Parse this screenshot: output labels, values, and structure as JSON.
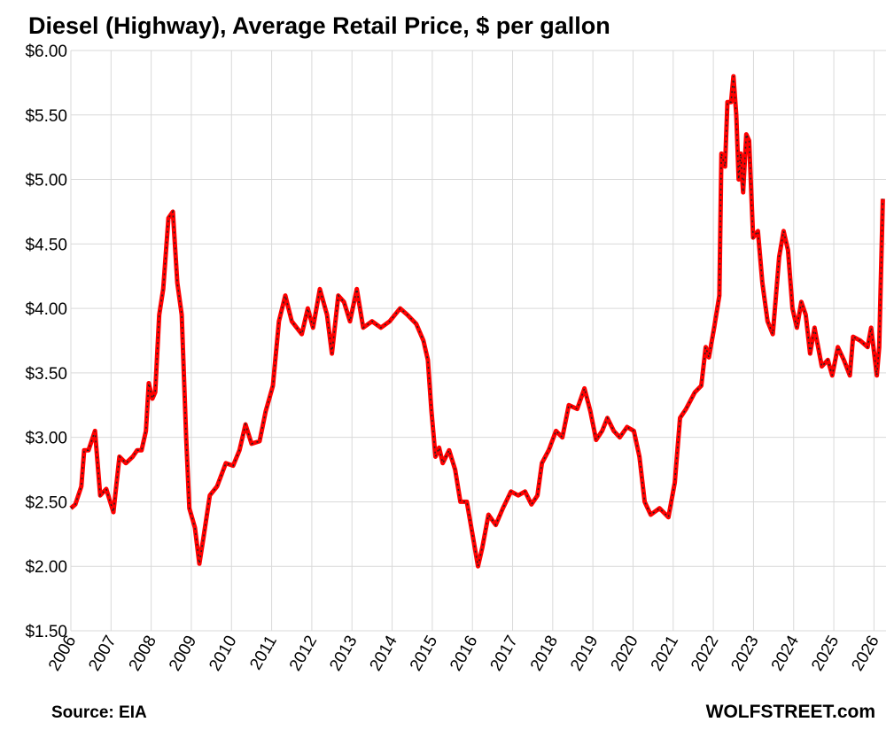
{
  "chart_data": {
    "type": "line",
    "title": "Diesel (Highway), Average Retail Price, $ per gallon",
    "source": "Source: EIA",
    "credit": "WOLFSTREET.com",
    "grid": true,
    "xlim": [
      2006,
      2026.3
    ],
    "xticks": [
      2006,
      2007,
      2008,
      2009,
      2010,
      2011,
      2012,
      2013,
      2014,
      2015,
      2016,
      2017,
      2018,
      2019,
      2020,
      2021,
      2022,
      2023,
      2024,
      2025,
      2026
    ],
    "ylim": [
      1.5,
      6
    ],
    "yticks": [
      {
        "value": 1.5,
        "label": "$1.50"
      },
      {
        "value": 2,
        "label": "$2.00"
      },
      {
        "value": 2.5,
        "label": "$2.50"
      },
      {
        "value": 3,
        "label": "$3.00"
      },
      {
        "value": 3.5,
        "label": "$3.50"
      },
      {
        "value": 4,
        "label": "$4.00"
      },
      {
        "value": 4.5,
        "label": "$4.50"
      },
      {
        "value": 5,
        "label": "$5.00"
      },
      {
        "value": 5.5,
        "label": "$5.50"
      },
      {
        "value": 6,
        "label": "$6.00"
      }
    ],
    "x": [
      2006,
      2006.11,
      2006.26,
      2006.33,
      2006.44,
      2006.6,
      2006.73,
      2006.88,
      2007.06,
      2007.21,
      2007.37,
      2007.54,
      2007.65,
      2007.76,
      2007.87,
      2007.94,
      2008.03,
      2008.1,
      2008.2,
      2008.3,
      2008.43,
      2008.54,
      2008.65,
      2008.76,
      2008.87,
      2008.95,
      2009.09,
      2009.2,
      2009.3,
      2009.46,
      2009.64,
      2009.86,
      2010.04,
      2010.2,
      2010.35,
      2010.5,
      2010.7,
      2010.85,
      2011.03,
      2011.18,
      2011.34,
      2011.5,
      2011.75,
      2011.9,
      2012.03,
      2012.2,
      2012.38,
      2012.5,
      2012.66,
      2012.8,
      2012.95,
      2013.12,
      2013.28,
      2013.5,
      2013.72,
      2013.94,
      2014.2,
      2014.38,
      2014.6,
      2014.78,
      2014.89,
      2014.98,
      2015.08,
      2015.17,
      2015.26,
      2015.42,
      2015.57,
      2015.7,
      2015.86,
      2016.0,
      2016.14,
      2016.25,
      2016.4,
      2016.58,
      2016.76,
      2016.96,
      2017.14,
      2017.31,
      2017.47,
      2017.62,
      2017.73,
      2017.9,
      2018.08,
      2018.24,
      2018.4,
      2018.61,
      2018.79,
      2018.94,
      2019.08,
      2019.23,
      2019.36,
      2019.52,
      2019.67,
      2019.85,
      2020.02,
      2020.16,
      2020.29,
      2020.44,
      2020.66,
      2020.88,
      2021.04,
      2021.17,
      2021.32,
      2021.54,
      2021.7,
      2021.81,
      2021.89,
      2022.02,
      2022.15,
      2022.2,
      2022.29,
      2022.35,
      2022.44,
      2022.5,
      2022.57,
      2022.63,
      2022.68,
      2022.74,
      2022.82,
      2022.89,
      2022.99,
      2023.11,
      2023.22,
      2023.35,
      2023.48,
      2023.64,
      2023.75,
      2023.86,
      2023.97,
      2024.08,
      2024.19,
      2024.3,
      2024.41,
      2024.52,
      2024.7,
      2024.85,
      2024.96,
      2025.1,
      2025.25,
      2025.4,
      2025.48,
      2025.66,
      2025.84,
      2025.93,
      2026.07,
      2026.13,
      2026.22
    ],
    "series": [
      {
        "name": "Diesel price",
        "color": "#ff0000",
        "values": [
          2.45,
          2.48,
          2.62,
          2.9,
          2.9,
          3.05,
          2.55,
          2.6,
          2.42,
          2.85,
          2.8,
          2.85,
          2.9,
          2.9,
          3.05,
          3.42,
          3.3,
          3.35,
          3.95,
          4.15,
          4.7,
          4.75,
          4.2,
          3.95,
          3.0,
          2.45,
          2.3,
          2.02,
          2.22,
          2.55,
          2.62,
          2.8,
          2.78,
          2.9,
          3.1,
          2.95,
          2.97,
          3.2,
          3.4,
          3.9,
          4.1,
          3.9,
          3.8,
          4.0,
          3.85,
          4.15,
          3.95,
          3.65,
          4.1,
          4.05,
          3.9,
          4.15,
          3.85,
          3.9,
          3.85,
          3.9,
          4.0,
          3.95,
          3.88,
          3.75,
          3.6,
          3.2,
          2.85,
          2.92,
          2.8,
          2.9,
          2.75,
          2.5,
          2.5,
          2.25,
          2.0,
          2.15,
          2.4,
          2.32,
          2.45,
          2.58,
          2.55,
          2.58,
          2.48,
          2.55,
          2.8,
          2.9,
          3.05,
          3.0,
          3.25,
          3.22,
          3.38,
          3.2,
          2.98,
          3.05,
          3.15,
          3.05,
          3.0,
          3.08,
          3.05,
          2.85,
          2.5,
          2.4,
          2.45,
          2.38,
          2.65,
          3.15,
          3.22,
          3.35,
          3.4,
          3.7,
          3.62,
          3.85,
          4.1,
          5.2,
          5.1,
          5.6,
          5.6,
          5.8,
          5.5,
          5.0,
          5.2,
          4.9,
          5.35,
          5.3,
          4.55,
          4.6,
          4.2,
          3.9,
          3.8,
          4.4,
          4.6,
          4.45,
          4.0,
          3.85,
          4.05,
          3.95,
          3.65,
          3.85,
          3.55,
          3.6,
          3.48,
          3.7,
          3.6,
          3.48,
          3.78,
          3.75,
          3.7,
          3.85,
          3.48,
          3.7,
          4.85
        ]
      }
    ]
  }
}
